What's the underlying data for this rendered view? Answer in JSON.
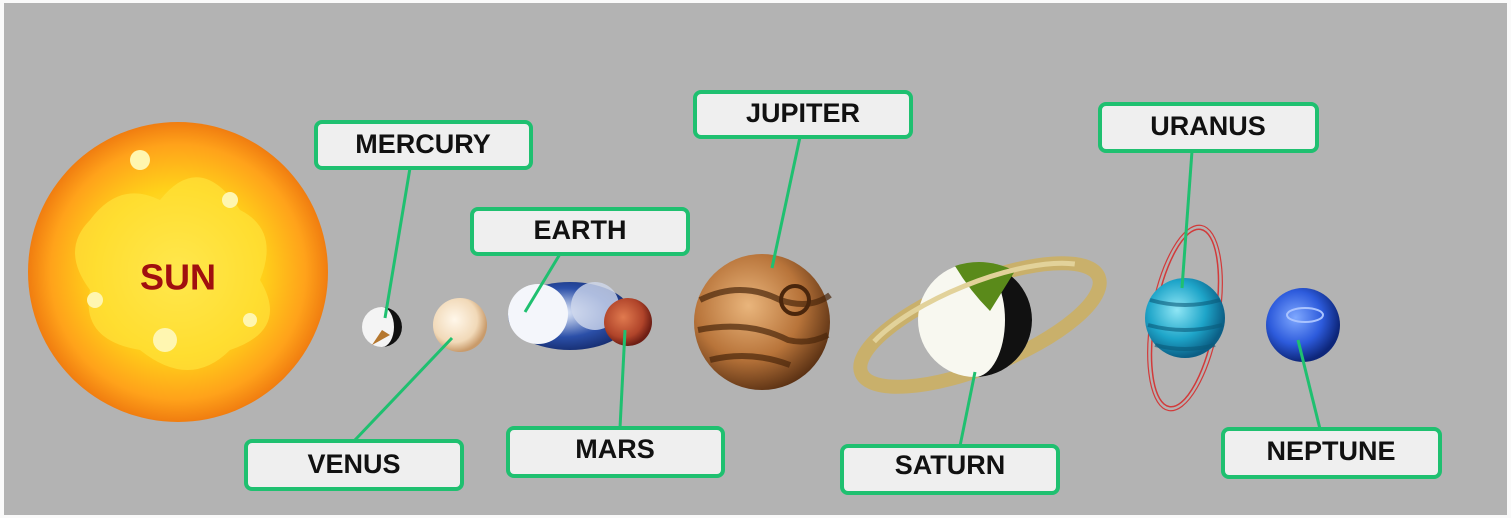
{
  "sun": {
    "label": "SUN"
  },
  "planets": [
    {
      "name": "MERCURY"
    },
    {
      "name": "VENUS"
    },
    {
      "name": "EARTH"
    },
    {
      "name": "MARS"
    },
    {
      "name": "JUPITER"
    },
    {
      "name": "SATURN"
    },
    {
      "name": "URANUS"
    },
    {
      "name": "NEPTUNE"
    }
  ]
}
